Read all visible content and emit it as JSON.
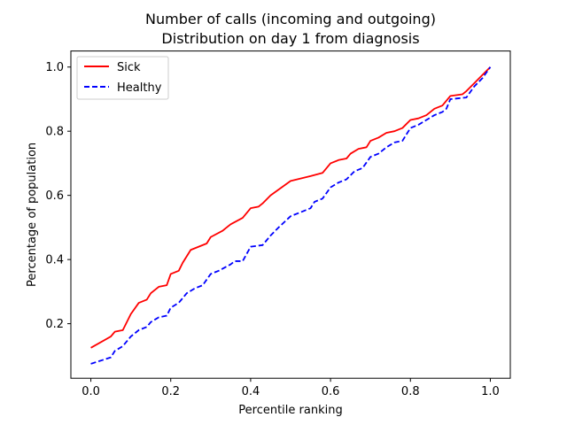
{
  "chart_data": {
    "type": "line",
    "title": "Number of calls (incoming and outgoing)",
    "subtitle": "Distribution on day 1 from diagnosis",
    "xlabel": "Percentile ranking",
    "ylabel": "Percentage of population",
    "xlim": [
      -0.05,
      1.05
    ],
    "ylim": [
      0.03,
      1.05
    ],
    "xticks": [
      0.0,
      0.2,
      0.4,
      0.6,
      0.8,
      1.0
    ],
    "xtick_labels": [
      "0.0",
      "0.2",
      "0.4",
      "0.6",
      "0.8",
      "1.0"
    ],
    "yticks": [
      0.2,
      0.4,
      0.6,
      0.8,
      1.0
    ],
    "ytick_labels": [
      "0.2",
      "0.4",
      "0.6",
      "0.8",
      "1.0"
    ],
    "grid": false,
    "legend_position": "top-left",
    "series": [
      {
        "name": "Sick",
        "color": "#ff0000",
        "linestyle": "solid",
        "points": [
          [
            0.0,
            0.125
          ],
          [
            0.05,
            0.16
          ],
          [
            0.06,
            0.175
          ],
          [
            0.08,
            0.18
          ],
          [
            0.1,
            0.23
          ],
          [
            0.12,
            0.265
          ],
          [
            0.14,
            0.275
          ],
          [
            0.15,
            0.295
          ],
          [
            0.17,
            0.315
          ],
          [
            0.19,
            0.32
          ],
          [
            0.2,
            0.355
          ],
          [
            0.22,
            0.365
          ],
          [
            0.23,
            0.39
          ],
          [
            0.25,
            0.43
          ],
          [
            0.27,
            0.44
          ],
          [
            0.29,
            0.45
          ],
          [
            0.3,
            0.47
          ],
          [
            0.33,
            0.49
          ],
          [
            0.35,
            0.51
          ],
          [
            0.38,
            0.53
          ],
          [
            0.4,
            0.56
          ],
          [
            0.42,
            0.565
          ],
          [
            0.43,
            0.575
          ],
          [
            0.45,
            0.6
          ],
          [
            0.5,
            0.645
          ],
          [
            0.55,
            0.66
          ],
          [
            0.58,
            0.67
          ],
          [
            0.6,
            0.7
          ],
          [
            0.62,
            0.71
          ],
          [
            0.64,
            0.715
          ],
          [
            0.65,
            0.73
          ],
          [
            0.67,
            0.745
          ],
          [
            0.69,
            0.75
          ],
          [
            0.7,
            0.77
          ],
          [
            0.72,
            0.78
          ],
          [
            0.74,
            0.795
          ],
          [
            0.76,
            0.8
          ],
          [
            0.78,
            0.81
          ],
          [
            0.8,
            0.835
          ],
          [
            0.82,
            0.84
          ],
          [
            0.84,
            0.85
          ],
          [
            0.86,
            0.87
          ],
          [
            0.88,
            0.88
          ],
          [
            0.9,
            0.91
          ],
          [
            0.93,
            0.915
          ],
          [
            0.94,
            0.925
          ],
          [
            0.96,
            0.95
          ],
          [
            0.98,
            0.975
          ],
          [
            1.0,
            1.0
          ]
        ]
      },
      {
        "name": "Healthy",
        "color": "#0000ff",
        "linestyle": "dashed",
        "points": [
          [
            0.0,
            0.075
          ],
          [
            0.05,
            0.095
          ],
          [
            0.06,
            0.115
          ],
          [
            0.08,
            0.13
          ],
          [
            0.1,
            0.16
          ],
          [
            0.12,
            0.18
          ],
          [
            0.14,
            0.19
          ],
          [
            0.15,
            0.205
          ],
          [
            0.17,
            0.22
          ],
          [
            0.19,
            0.225
          ],
          [
            0.2,
            0.25
          ],
          [
            0.22,
            0.265
          ],
          [
            0.24,
            0.295
          ],
          [
            0.26,
            0.31
          ],
          [
            0.28,
            0.32
          ],
          [
            0.3,
            0.355
          ],
          [
            0.32,
            0.365
          ],
          [
            0.35,
            0.385
          ],
          [
            0.36,
            0.395
          ],
          [
            0.38,
            0.395
          ],
          [
            0.4,
            0.44
          ],
          [
            0.43,
            0.445
          ],
          [
            0.45,
            0.475
          ],
          [
            0.47,
            0.5
          ],
          [
            0.5,
            0.535
          ],
          [
            0.53,
            0.55
          ],
          [
            0.55,
            0.56
          ],
          [
            0.56,
            0.58
          ],
          [
            0.58,
            0.59
          ],
          [
            0.6,
            0.625
          ],
          [
            0.62,
            0.64
          ],
          [
            0.64,
            0.65
          ],
          [
            0.66,
            0.675
          ],
          [
            0.68,
            0.685
          ],
          [
            0.7,
            0.72
          ],
          [
            0.72,
            0.73
          ],
          [
            0.74,
            0.75
          ],
          [
            0.76,
            0.765
          ],
          [
            0.78,
            0.77
          ],
          [
            0.8,
            0.81
          ],
          [
            0.82,
            0.82
          ],
          [
            0.84,
            0.835
          ],
          [
            0.86,
            0.85
          ],
          [
            0.88,
            0.86
          ],
          [
            0.89,
            0.87
          ],
          [
            0.9,
            0.9
          ],
          [
            0.94,
            0.905
          ],
          [
            0.96,
            0.94
          ],
          [
            0.98,
            0.965
          ],
          [
            1.0,
            1.0
          ]
        ]
      }
    ]
  }
}
